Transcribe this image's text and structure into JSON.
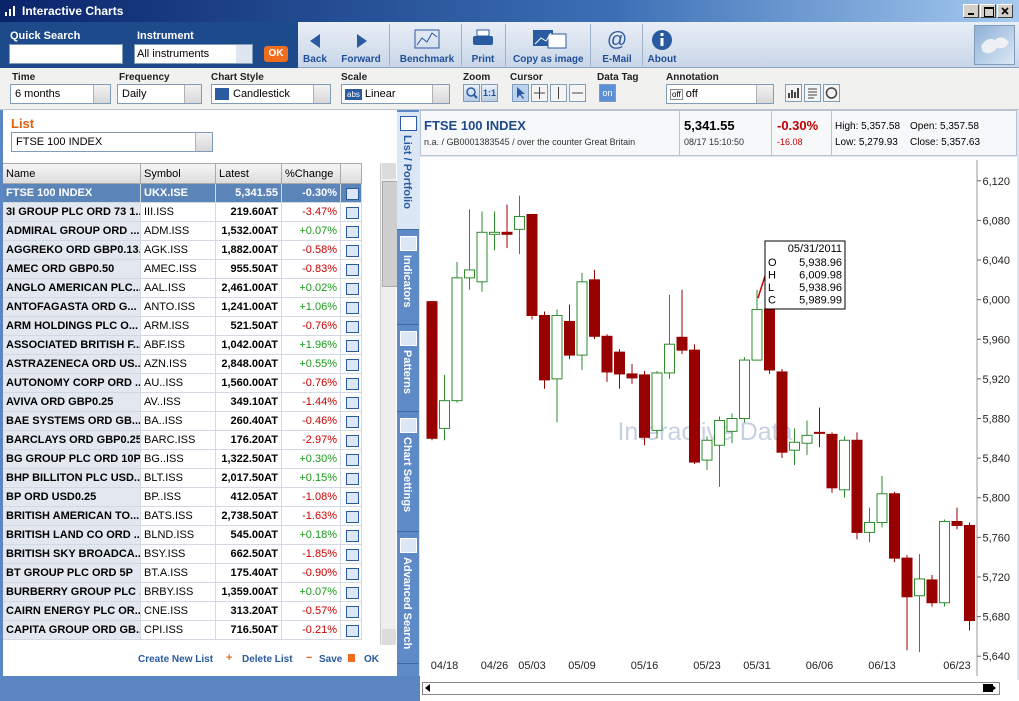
{
  "window": {
    "title": "Interactive Charts"
  },
  "toolbar": {
    "quick_search_label": "Quick Search",
    "instrument_label": "Instrument",
    "instrument_value": "All instruments",
    "ok": "OK",
    "buttons": [
      "Back",
      "Forward",
      "Benchmark",
      "Print",
      "Copy as image",
      "E-Mail",
      "About"
    ]
  },
  "controls": {
    "time": {
      "label": "Time",
      "value": "6 months"
    },
    "frequency": {
      "label": "Frequency",
      "value": "Daily"
    },
    "chart_style": {
      "label": "Chart Style",
      "value": "Candlestick"
    },
    "scale": {
      "label": "Scale",
      "icon": "abs",
      "value": "Linear"
    },
    "zoom": {
      "label": "Zoom",
      "reset": "1:1"
    },
    "cursor": {
      "label": "Cursor"
    },
    "data_tag": {
      "label": "Data Tag",
      "value": "on"
    },
    "annotation": {
      "label": "Annotation",
      "icon": "off",
      "value": "off"
    }
  },
  "list": {
    "label": "List",
    "value": "FTSE 100 INDEX",
    "columns": [
      "Name",
      "Symbol",
      "Latest",
      "%Change"
    ],
    "rows": [
      [
        "FTSE 100 INDEX",
        "UKX.ISE",
        "5,341.55",
        "-0.30%"
      ],
      [
        "3I GROUP PLC ORD 73 1...",
        "III.ISS",
        "219.60AT",
        "-3.47%"
      ],
      [
        "ADMIRAL GROUP ORD ...",
        "ADM.ISS",
        "1,532.00AT",
        "+0.07%"
      ],
      [
        "AGGREKO ORD GBP0.13...",
        "AGK.ISS",
        "1,882.00AT",
        "-0.58%"
      ],
      [
        "AMEC ORD GBP0.50",
        "AMEC.ISS",
        "955.50AT",
        "-0.83%"
      ],
      [
        "ANGLO AMERICAN PLC...",
        "AAL.ISS",
        "2,461.00AT",
        "+0.02%"
      ],
      [
        "ANTOFAGASTA ORD G...",
        "ANTO.ISS",
        "1,241.00AT",
        "+1.06%"
      ],
      [
        "ARM HOLDINGS PLC O...",
        "ARM.ISS",
        "521.50AT",
        "-0.76%"
      ],
      [
        "ASSOCIATED BRITISH F...",
        "ABF.ISS",
        "1,042.00AT",
        "+1.96%"
      ],
      [
        "ASTRAZENECA ORD US...",
        "AZN.ISS",
        "2,848.00AT",
        "+0.55%"
      ],
      [
        "AUTONOMY CORP ORD ...",
        "AU..ISS",
        "1,560.00AT",
        "-0.76%"
      ],
      [
        "AVIVA ORD GBP0.25",
        "AV..ISS",
        "349.10AT",
        "-1.44%"
      ],
      [
        "BAE SYSTEMS ORD GB...",
        "BA..ISS",
        "260.40AT",
        "-0.46%"
      ],
      [
        "BARCLAYS ORD GBP0.25",
        "BARC.ISS",
        "176.20AT",
        "-2.97%"
      ],
      [
        "BG GROUP PLC ORD 10P",
        "BG..ISS",
        "1,322.50AT",
        "+0.30%"
      ],
      [
        "BHP BILLITON PLC USD...",
        "BLT.ISS",
        "2,017.50AT",
        "+0.15%"
      ],
      [
        "BP ORD USD0.25",
        "BP..ISS",
        "412.05AT",
        "-1.08%"
      ],
      [
        "BRITISH AMERICAN TO...",
        "BATS.ISS",
        "2,738.50AT",
        "-1.63%"
      ],
      [
        "BRITISH LAND CO ORD ...",
        "BLND.ISS",
        "545.00AT",
        "+0.18%"
      ],
      [
        "BRITISH SKY BROADCA...",
        "BSY.ISS",
        "662.50AT",
        "-1.85%"
      ],
      [
        "BT GROUP PLC ORD 5P",
        "BT.A.ISS",
        "175.40AT",
        "-0.90%"
      ],
      [
        "BURBERRY GROUP PLC ...",
        "BRBY.ISS",
        "1,359.00AT",
        "+0.07%"
      ],
      [
        "CAIRN ENERGY PLC OR...",
        "CNE.ISS",
        "313.20AT",
        "-0.57%"
      ],
      [
        "CAPITA GROUP ORD GB...",
        "CPI.ISS",
        "716.50AT",
        "-0.21%"
      ]
    ],
    "footer": [
      "Create New List",
      "Delete List",
      "Save",
      "OK"
    ]
  },
  "tabs": [
    "List / Portfolio",
    "Indicators",
    "Patterns",
    "Chart Settings",
    "Advanced Search"
  ],
  "quote": {
    "name": "FTSE 100 INDEX",
    "info": "n.a. / GB0001383545 / over the counter Great Britain",
    "last": "5,341.55",
    "time": "08/17 15:10:50",
    "change_pct": "-0.30%",
    "change": "-16.08",
    "high": "High: 5,357.58",
    "open": "Open: 5,357.58",
    "low": "Low: 5,279.93",
    "close": "Close: 5,357.63"
  },
  "chart_data": {
    "type": "candlestick",
    "watermark": "Interactive Data",
    "up_color": "#2e8b2e",
    "down_color": "#990000",
    "categories": [
      null,
      "04/18",
      null,
      null,
      null,
      "04/26",
      null,
      null,
      "05/03",
      null,
      null,
      null,
      "05/09",
      null,
      null,
      null,
      null,
      "05/16",
      null,
      null,
      null,
      null,
      "05/23",
      null,
      null,
      null,
      "05/31",
      null,
      null,
      null,
      null,
      "06/06",
      null,
      null,
      null,
      null,
      "06/13",
      null,
      null,
      null,
      null,
      null,
      "06/23",
      null
    ],
    "open": [
      5998,
      5870,
      5898,
      6022,
      6018,
      6066,
      6068,
      6071,
      6086,
      5984,
      5920,
      5978,
      5944,
      6020,
      5963,
      5947,
      5925,
      5924,
      5868,
      5926,
      5962,
      5949,
      5838,
      5853,
      5867,
      5880,
      5938.96,
      5990,
      5927,
      5848,
      5855,
      5866,
      5864,
      5808,
      5858,
      5765,
      5775,
      5804,
      5739,
      5701,
      5717,
      5694,
      5776,
      5772
    ],
    "high": [
      5998,
      5924,
      6038,
      6091,
      6089,
      6089,
      6096,
      6105,
      6086,
      5988,
      5990,
      5995,
      6027,
      6030,
      5965,
      5950,
      5935,
      5928,
      5928,
      6005,
      6010,
      5955,
      5862,
      5882,
      5885,
      5942,
      6009.98,
      5995,
      5930,
      5870,
      5878,
      5891,
      5866,
      5862,
      5866,
      5790,
      5822,
      5806,
      5742,
      5743,
      5722,
      5778,
      5790,
      5775
    ],
    "low": [
      5858,
      5858,
      5896,
      6010,
      6008,
      6050,
      6052,
      6046,
      5980,
      5910,
      5876,
      5940,
      5929,
      5960,
      5917,
      5910,
      5915,
      5853,
      5860,
      5920,
      5945,
      5834,
      5828,
      5811,
      5855,
      5876,
      5938.96,
      5925,
      5840,
      5833,
      5843,
      5851,
      5805,
      5800,
      5758,
      5755,
      5770,
      5735,
      5646,
      5644,
      5690,
      5690,
      5768,
      5666
    ],
    "close": [
      5860,
      5898,
      6022,
      6030,
      6068,
      6068,
      6066,
      6084,
      5984,
      5919,
      5984,
      5944,
      6018,
      5963,
      5927,
      5925,
      5921,
      5861,
      5926,
      5955,
      5949,
      5836,
      5858,
      5878,
      5880,
      5939,
      5989.99,
      5929,
      5846,
      5856,
      5863,
      5865,
      5810,
      5858,
      5765,
      5775,
      5804,
      5739,
      5700,
      5718,
      5694,
      5776,
      5772,
      5676
    ],
    "ylim": [
      5620,
      6141
    ],
    "yticks": [
      {
        "value": 5640,
        "label": "5,640"
      },
      {
        "value": 5680,
        "label": "5,680"
      },
      {
        "value": 5720,
        "label": "5,720"
      },
      {
        "value": 5760,
        "label": "5,760"
      },
      {
        "value": 5800,
        "label": "5,800"
      },
      {
        "value": 5840,
        "label": "5,840"
      },
      {
        "value": 5880,
        "label": "5,880"
      },
      {
        "value": 5920,
        "label": "5,920"
      },
      {
        "value": 5960,
        "label": "5,960"
      },
      {
        "value": 6000,
        "label": "6,000"
      },
      {
        "value": 6040,
        "label": "6,040"
      },
      {
        "value": 6080,
        "label": "6,080"
      },
      {
        "value": 6120,
        "label": "6,120"
      }
    ],
    "tooltip": {
      "date": "05/31/2011",
      "rows": [
        {
          "key": "O",
          "text": "5,938.96"
        },
        {
          "key": "H",
          "text": "6,009.98"
        },
        {
          "key": "L",
          "text": "5,938.96"
        },
        {
          "key": "C",
          "text": "5,989.99"
        }
      ]
    }
  }
}
